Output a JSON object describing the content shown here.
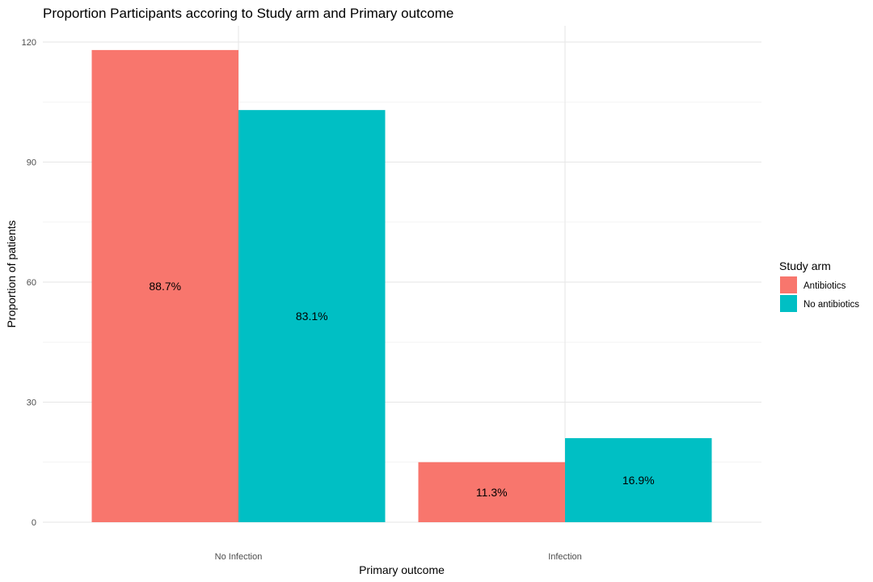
{
  "chart_data": {
    "type": "bar",
    "title": "Proportion Participants accoring to Study arm and Primary outcome",
    "xlabel": "Primary outcome",
    "ylabel": "Proportion of patients",
    "categories": [
      "No Infection",
      "Infection"
    ],
    "series": [
      {
        "name": "Antibiotics",
        "values": [
          118,
          15
        ],
        "labels": [
          "88.7%",
          "11.3%"
        ],
        "color": "#F8766D"
      },
      {
        "name": "No antibiotics",
        "values": [
          103,
          21
        ],
        "labels": [
          "83.1%",
          "16.9%"
        ],
        "color": "#00BFC4"
      }
    ],
    "ylim": [
      0,
      120
    ],
    "yticks": [
      0,
      30,
      60,
      90,
      120
    ],
    "grid": true,
    "legend": {
      "title": "Study arm",
      "position": "right"
    }
  }
}
